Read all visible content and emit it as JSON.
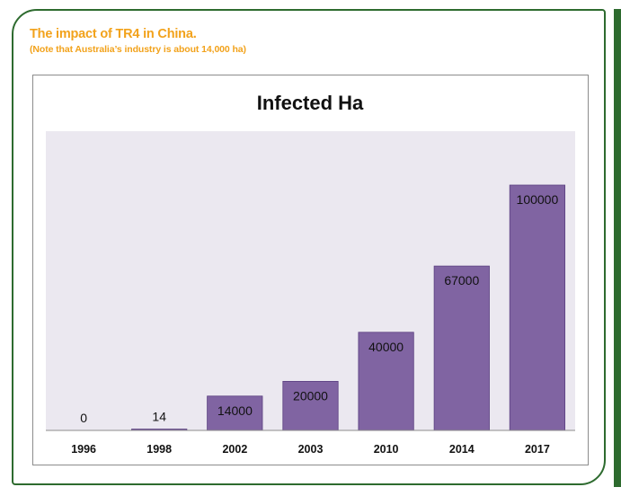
{
  "header": {
    "title": "The impact of TR4 in China.",
    "note": "(Note that Australia’s industry is about 14,000 ha)"
  },
  "colors": {
    "accent_orange": "#f2a21b",
    "frame_green": "#2e6b2f",
    "bar_purple": "#8064a2",
    "plot_background": "#ebe8f0"
  },
  "chart_data": {
    "type": "bar",
    "title": "Infected Ha",
    "xlabel": "",
    "ylabel": "",
    "categories": [
      "1996",
      "1998",
      "2002",
      "2003",
      "2010",
      "2014",
      "2017"
    ],
    "values": [
      0,
      14,
      14000,
      20000,
      40000,
      67000,
      100000
    ],
    "data_labels": [
      "0",
      "14",
      "14000",
      "20000",
      "40000",
      "67000",
      "100000"
    ],
    "ylim": [
      0,
      122000
    ],
    "grid": false,
    "legend": "none"
  }
}
